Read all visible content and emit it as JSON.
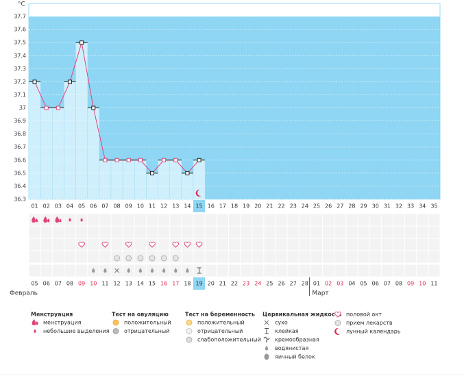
{
  "chart_data": {
    "type": "line",
    "y_label": "°C",
    "ylim": [
      36.3,
      37.8
    ],
    "yticks": [
      36.3,
      36.4,
      36.5,
      36.6,
      36.7,
      36.8,
      36.9,
      {
        "value": 37,
        "label": "37"
      },
      37.1,
      37.2,
      37.3,
      37.4,
      37.5,
      37.6,
      37.7
    ],
    "categories": [
      "01",
      "02",
      "03",
      "04",
      "05",
      "06",
      "07",
      "08",
      "09",
      "10",
      "11",
      "12",
      "13",
      "14",
      "15",
      "16",
      "17",
      "18",
      "19",
      "20",
      "21",
      "22",
      "23",
      "24",
      "25",
      "26",
      "27",
      "28",
      "29",
      "30",
      "31",
      "32",
      "33",
      "34",
      "35"
    ],
    "values": [
      37.2,
      37.0,
      37.0,
      37.2,
      37.5,
      37.0,
      36.6,
      36.6,
      36.6,
      36.6,
      36.5,
      36.6,
      36.6,
      36.5,
      36.6,
      null,
      null,
      null,
      null,
      null,
      null,
      null,
      null,
      null,
      null,
      null,
      null,
      null,
      null,
      null,
      null,
      null,
      null,
      null,
      null
    ],
    "color": "#e0447a",
    "grid": true,
    "current_day": "15",
    "dates": [
      {
        "text": "05"
      },
      {
        "text": "06"
      },
      {
        "text": "07"
      },
      {
        "text": "08"
      },
      {
        "text": "09",
        "red": true
      },
      {
        "text": "10",
        "red": true
      },
      {
        "text": "11"
      },
      {
        "text": "12"
      },
      {
        "text": "13"
      },
      {
        "text": "14"
      },
      {
        "text": "15"
      },
      {
        "text": "16",
        "red": true
      },
      {
        "text": "17",
        "red": true
      },
      {
        "text": "18"
      },
      {
        "text": "19"
      },
      {
        "text": "20"
      },
      {
        "text": "21"
      },
      {
        "text": "22"
      },
      {
        "text": "23",
        "red": true
      },
      {
        "text": "24",
        "red": true
      },
      {
        "text": "25"
      },
      {
        "text": "26"
      },
      {
        "text": "27"
      },
      {
        "text": "28"
      },
      {
        "text": "01"
      },
      {
        "text": "02",
        "red": true
      },
      {
        "text": "03",
        "red": true
      },
      {
        "text": "04"
      },
      {
        "text": "05"
      },
      {
        "text": "06"
      },
      {
        "text": "07"
      },
      {
        "text": "08"
      },
      {
        "text": "09",
        "red": true
      },
      {
        "text": "10",
        "red": true
      },
      {
        "text": "11"
      }
    ],
    "months": [
      {
        "text": "Февраль",
        "start": "01"
      },
      {
        "text": "Март",
        "start": "25"
      }
    ],
    "legend": [
      {
        "title": "Менструация",
        "items": [
          {
            "text": "менструация",
            "days": [
              "01",
              "02",
              "03"
            ]
          },
          {
            "text": "небольшие выделения",
            "days": [
              "04",
              "05"
            ]
          }
        ]
      },
      {
        "title": "Тест на овуляцию",
        "items": [
          {
            "text": "положительный",
            "days": []
          },
          {
            "text": "отрицательный",
            "days": []
          }
        ]
      },
      {
        "title": "Тест на беременность",
        "items": [
          {
            "text": "положительный",
            "days": []
          },
          {
            "text": "отрицательный",
            "days": []
          },
          {
            "text": "слабоположительный",
            "days": []
          }
        ]
      },
      {
        "title": "Цервикальная жидкость",
        "items": [
          {
            "text": "сухо",
            "days": [
              "08"
            ]
          },
          {
            "text": "клейкая",
            "days": [
              "15"
            ]
          },
          {
            "text": "кремообразная",
            "days": []
          },
          {
            "text": "водянистая",
            "days": [
              "06",
              "07",
              "09",
              "10",
              "11",
              "12",
              "13",
              "14"
            ]
          },
          {
            "text": "яичный белок",
            "days": []
          }
        ]
      },
      {
        "items": [
          {
            "text": "половой акт",
            "days": [
              "05",
              "07",
              "09",
              "11",
              "13",
              "14",
              "15"
            ]
          },
          {
            "text": "прием лекарств",
            "days": [
              "08",
              "09",
              "10",
              "11",
              "12",
              "13"
            ]
          },
          {
            "text": "лунный календарь",
            "days": [
              "15"
            ]
          }
        ]
      }
    ]
  }
}
